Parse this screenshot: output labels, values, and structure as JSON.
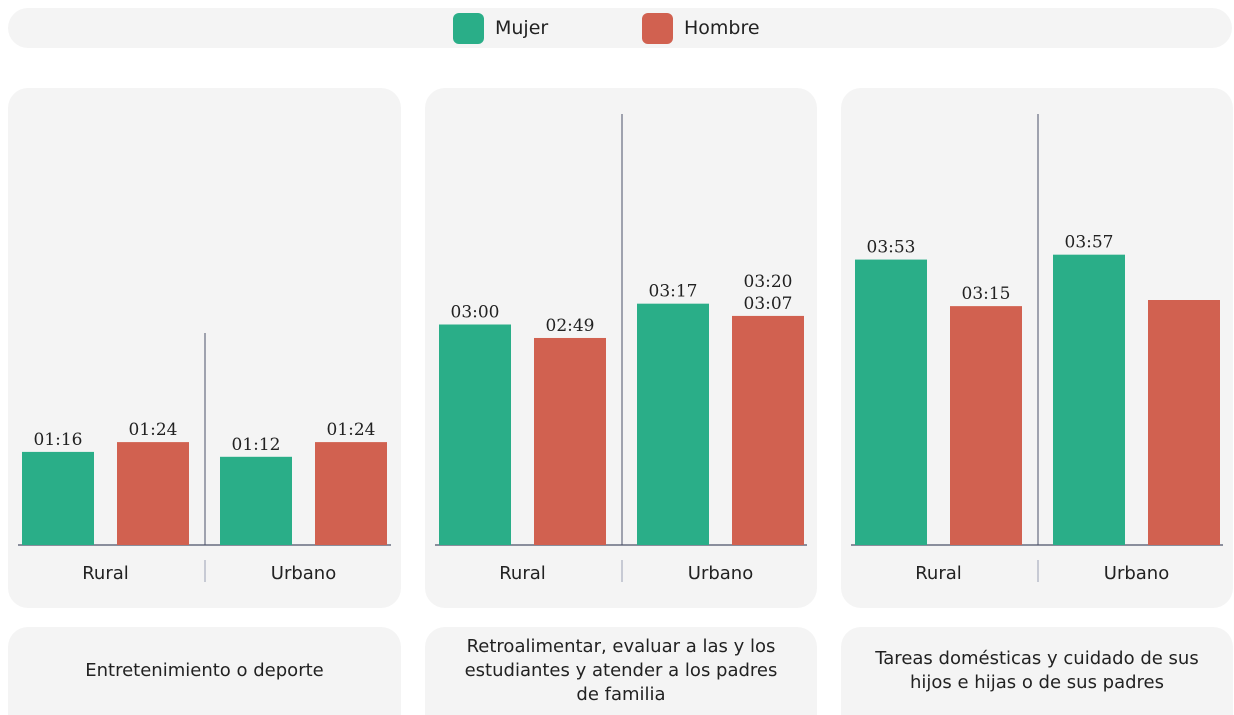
{
  "legend": [
    {
      "name": "Mujer",
      "color": "#2aae88"
    },
    {
      "name": "Hombre",
      "color": "#d16150"
    }
  ],
  "colors": {
    "mujer": "#2aae88",
    "hombre": "#d16150",
    "axis": "#4a5068"
  },
  "chart_data": [
    {
      "type": "bar",
      "title": "Entretenimiento o deporte",
      "categories": [
        "Rural",
        "Urbano"
      ],
      "unit": "hh:mm",
      "ylim": [
        0,
        6
      ],
      "series": [
        {
          "name": "Mujer",
          "values": [
            1.2667,
            1.2
          ],
          "labels": [
            "01:16",
            "01:12"
          ]
        },
        {
          "name": "Hombre",
          "values": [
            1.4,
            1.4
          ],
          "labels": [
            "01:24",
            "01:24"
          ]
        }
      ]
    },
    {
      "type": "bar",
      "title": "Retroalimentar, evaluar a las y los estudiantes y atender a los padres de familia",
      "categories": [
        "Rural",
        "Urbano"
      ],
      "unit": "hh:mm",
      "ylim": [
        0,
        6
      ],
      "series": [
        {
          "name": "Mujer",
          "values": [
            3.0,
            3.2833
          ],
          "labels": [
            "03:00",
            "03:17"
          ]
        },
        {
          "name": "Hombre",
          "values": [
            2.8167,
            3.1167
          ],
          "labels": [
            "02:49",
            "03:07"
          ]
        }
      ],
      "annotations": [
        "03:20"
      ]
    },
    {
      "type": "bar",
      "title": "Tareas domésticas y cuidado de sus hijos e hijas o de sus padres",
      "categories": [
        "Rural",
        "Urbano"
      ],
      "unit": "hh:mm",
      "ylim": [
        0,
        6
      ],
      "series": [
        {
          "name": "Mujer",
          "values": [
            3.8833,
            3.95
          ],
          "labels": [
            "03:53",
            "03:57"
          ]
        },
        {
          "name": "Hombre",
          "values": [
            3.25,
            3.3333
          ],
          "labels": [
            "03:15",
            ""
          ]
        }
      ]
    }
  ]
}
